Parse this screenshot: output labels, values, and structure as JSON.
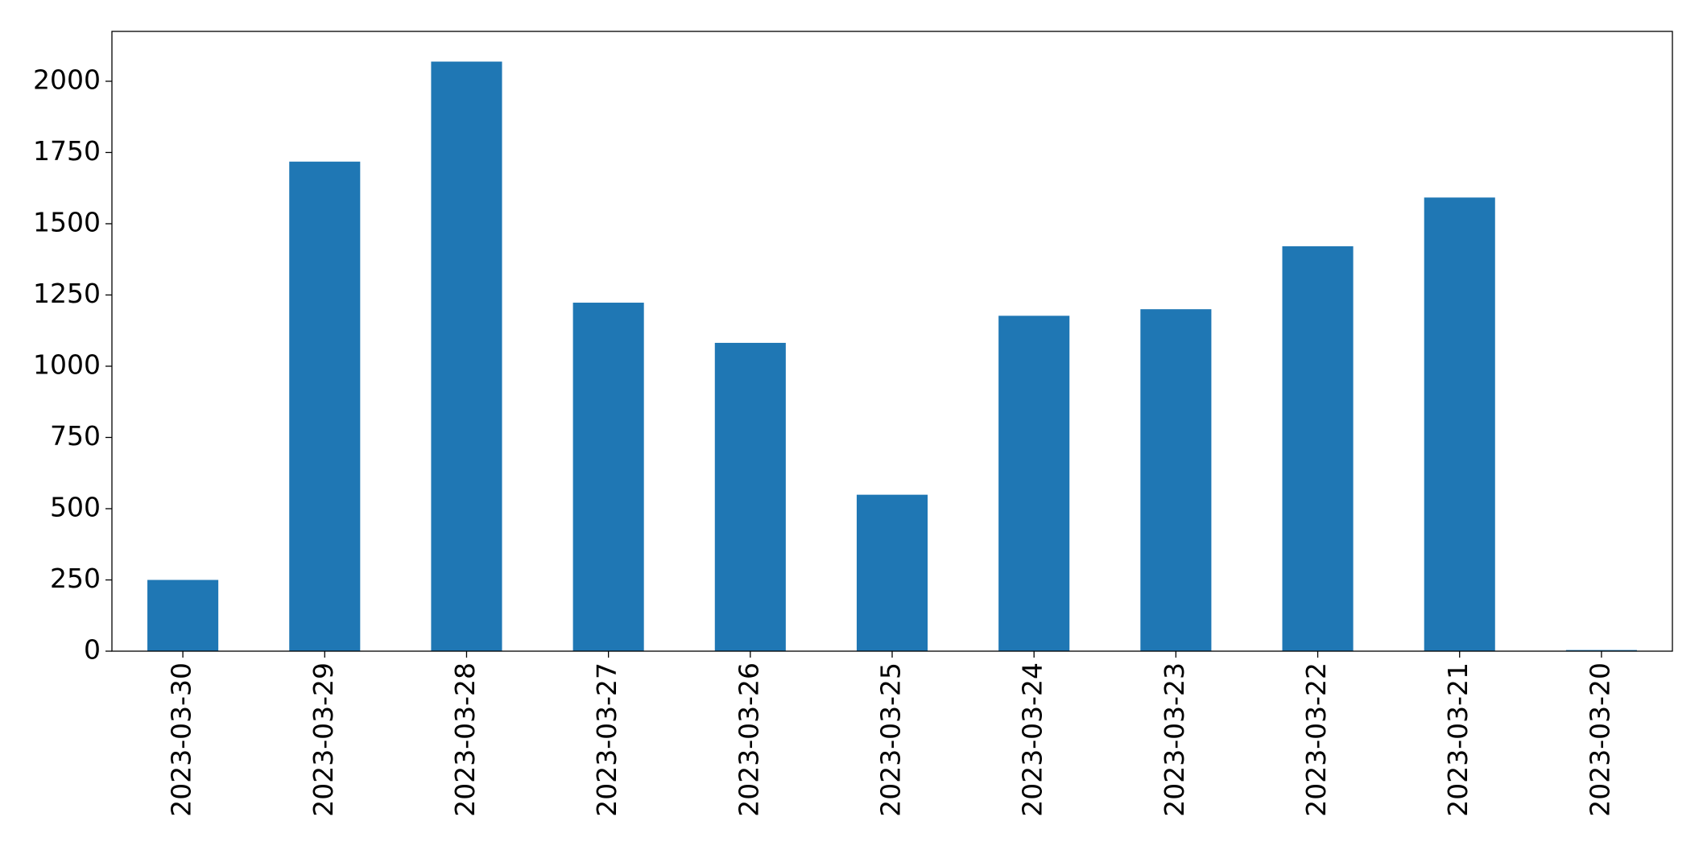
{
  "chart_data": {
    "type": "bar",
    "categories": [
      "2023-03-30",
      "2023-03-29",
      "2023-03-28",
      "2023-03-27",
      "2023-03-26",
      "2023-03-25",
      "2023-03-24",
      "2023-03-23",
      "2023-03-22",
      "2023-03-21",
      "2023-03-20"
    ],
    "values": [
      250,
      1718,
      2069,
      1223,
      1082,
      549,
      1177,
      1200,
      1421,
      1592,
      4
    ],
    "color": "#1f77b4",
    "ylim": [
      0,
      2175
    ],
    "yticks": [
      0,
      250,
      500,
      750,
      1000,
      1250,
      1500,
      1750,
      2000
    ],
    "grid": false
  }
}
